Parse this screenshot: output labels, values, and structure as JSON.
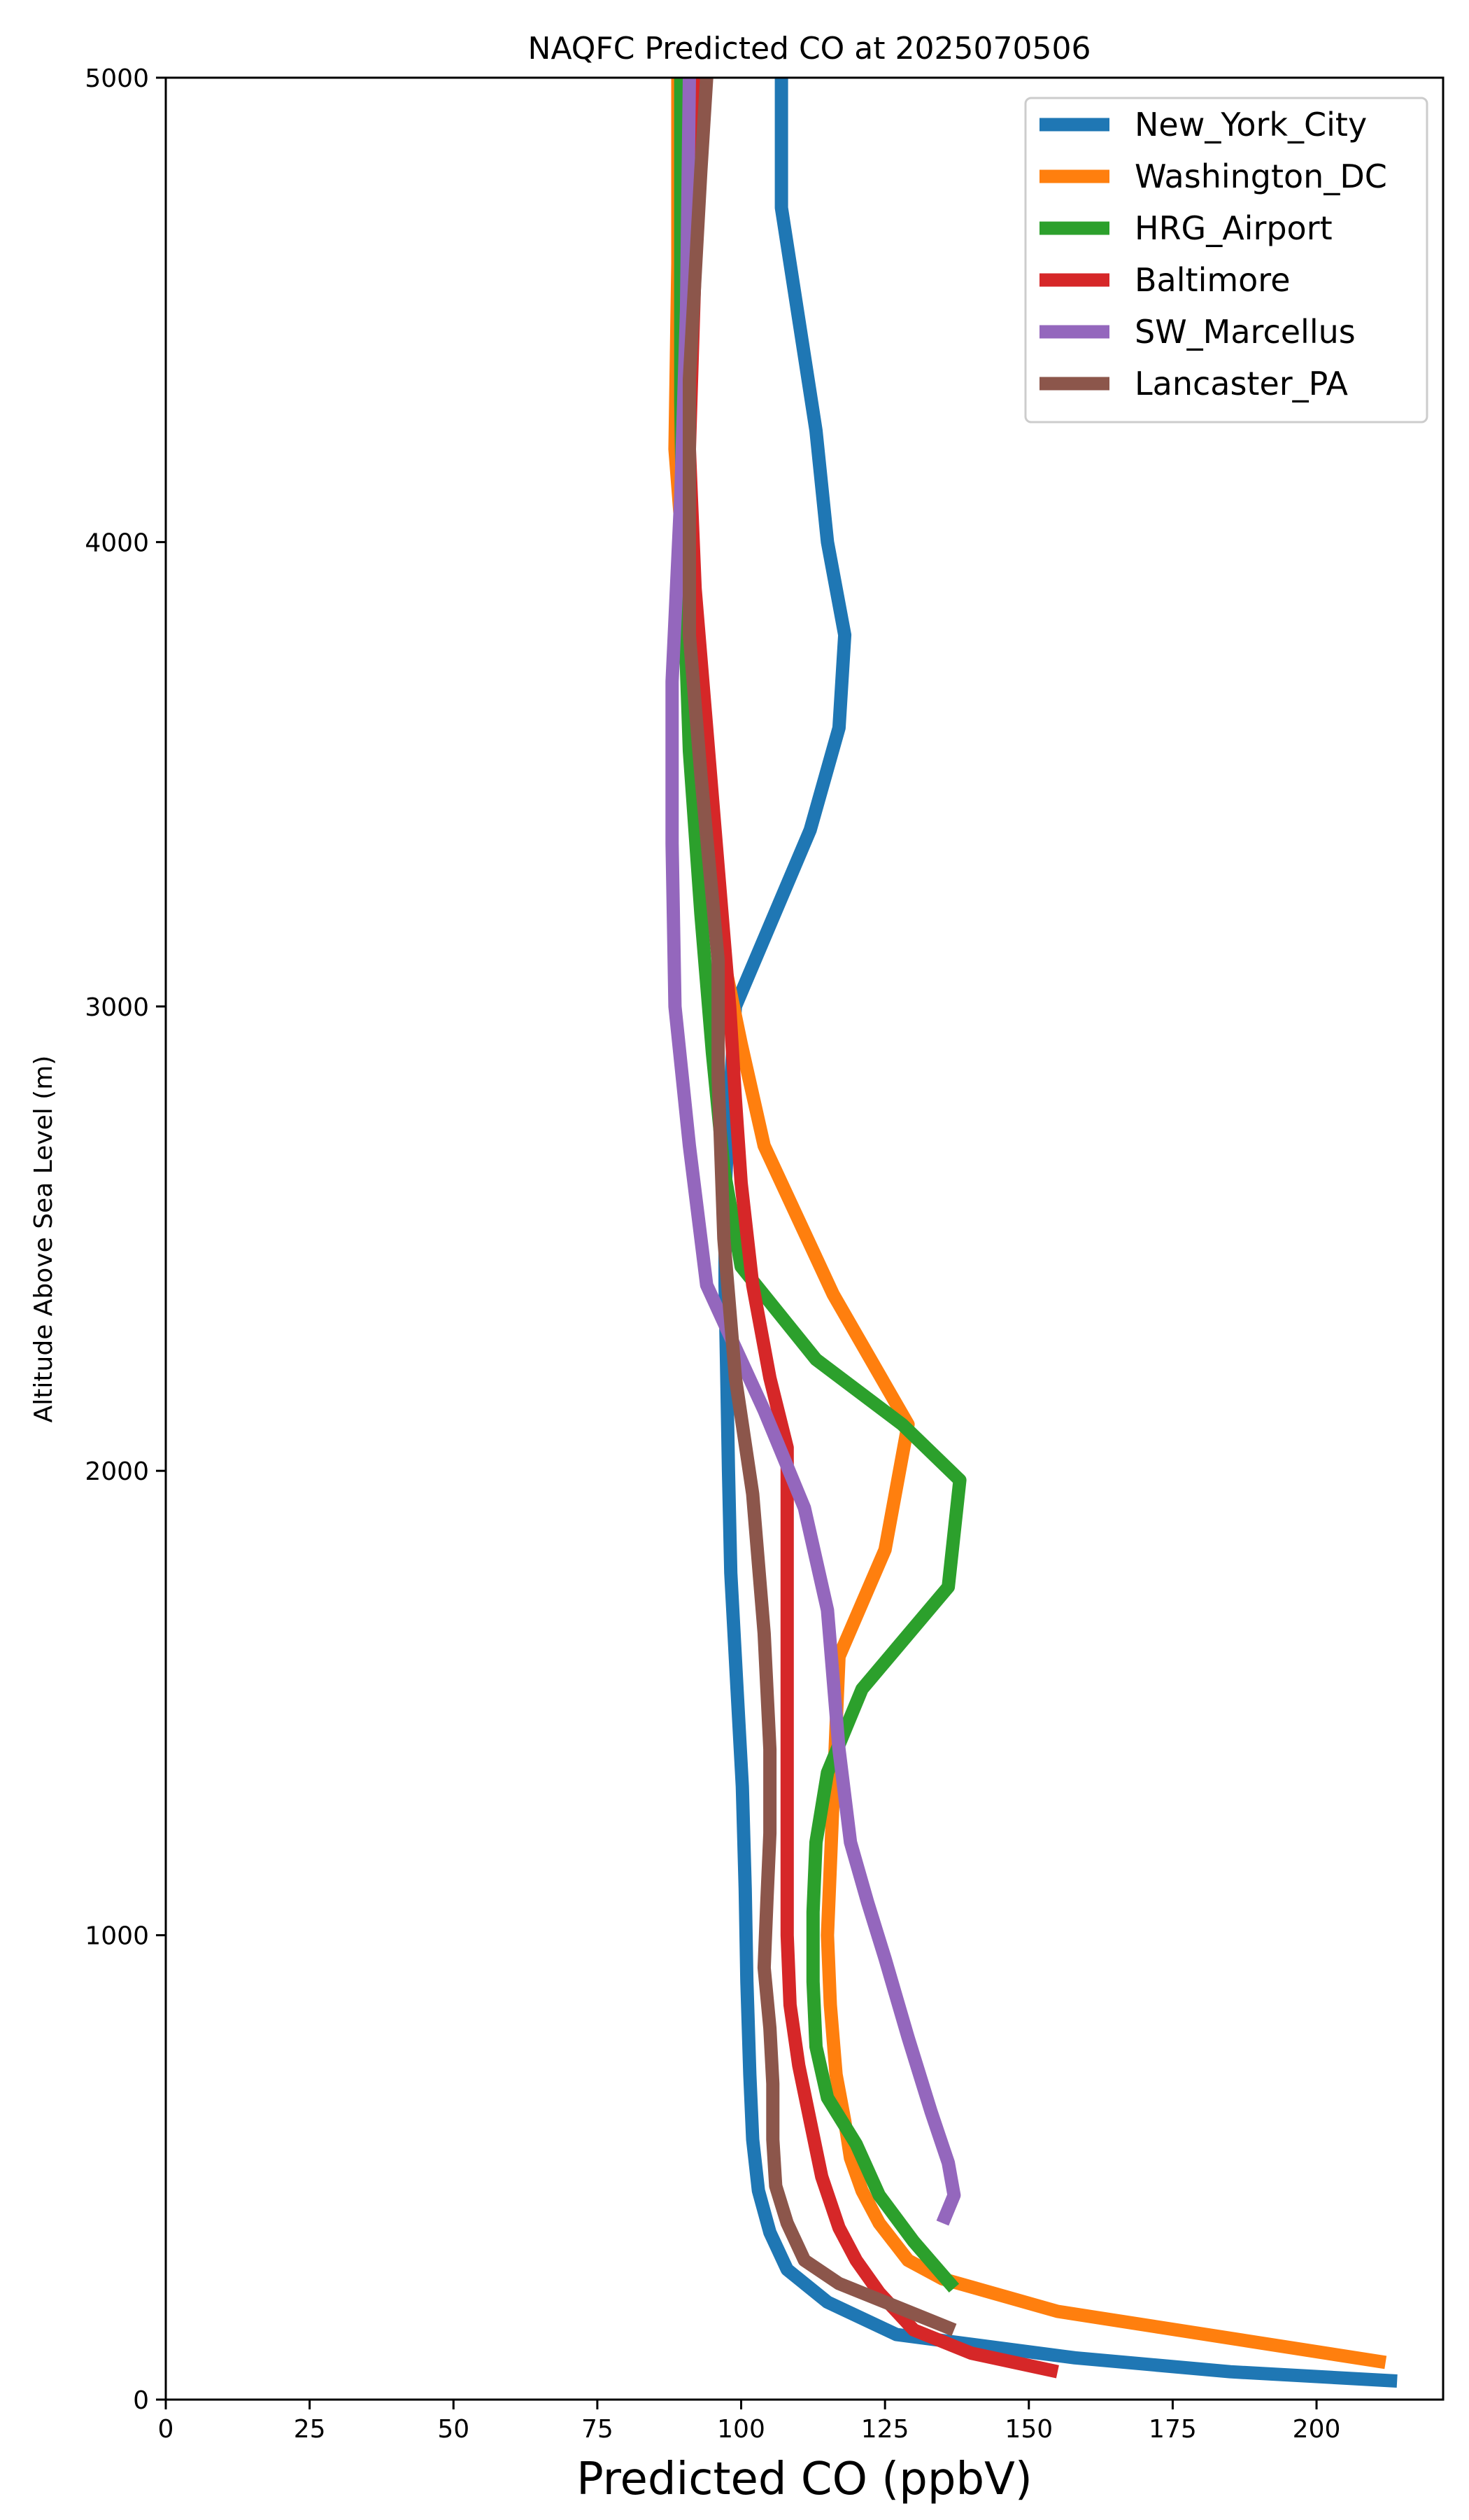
{
  "chart_data": {
    "type": "line",
    "title": "NAQFC Predicted CO at 2025070506",
    "xlabel": "Predicted CO (ppbV)",
    "ylabel": "Altitude Above Sea Level (m)",
    "xlim": [
      0,
      222
    ],
    "ylim": [
      0,
      5000
    ],
    "xticks": [
      0,
      25,
      50,
      75,
      100,
      125,
      150,
      175,
      200
    ],
    "yticks": [
      0,
      1000,
      2000,
      3000,
      4000,
      5000
    ],
    "grid": false,
    "legend_position": "top-right",
    "series": [
      {
        "name": "New_York_City",
        "color": "#1f77b4",
        "points": [
          [
            214,
            40
          ],
          [
            185,
            60
          ],
          [
            158,
            90
          ],
          [
            127,
            140
          ],
          [
            115,
            210
          ],
          [
            108,
            280
          ],
          [
            105,
            360
          ],
          [
            103,
            450
          ],
          [
            102,
            560
          ],
          [
            101.5,
            700
          ],
          [
            101,
            900
          ],
          [
            100.7,
            1100
          ],
          [
            100.2,
            1320
          ],
          [
            99.2,
            1550
          ],
          [
            98.2,
            1780
          ],
          [
            97.8,
            2000
          ],
          [
            97.5,
            2200
          ],
          [
            97.2,
            2400
          ],
          [
            97.2,
            2600
          ],
          [
            98,
            2800
          ],
          [
            99,
            3000
          ],
          [
            112,
            3380
          ],
          [
            117,
            3600
          ],
          [
            118,
            3800
          ],
          [
            115,
            4000
          ],
          [
            113,
            4240
          ],
          [
            107,
            4720
          ],
          [
            107,
            5000
          ]
        ]
      },
      {
        "name": "Washington_DC",
        "color": "#ff7f0e",
        "points": [
          [
            212,
            80
          ],
          [
            155,
            190
          ],
          [
            135,
            260
          ],
          [
            129,
            300
          ],
          [
            124,
            380
          ],
          [
            121,
            450
          ],
          [
            119,
            520
          ],
          [
            118,
            600
          ],
          [
            116.5,
            700
          ],
          [
            115.5,
            850
          ],
          [
            115,
            1000
          ],
          [
            115.5,
            1150
          ],
          [
            116,
            1300
          ],
          [
            116.5,
            1450
          ],
          [
            117,
            1600
          ],
          [
            125,
            1830
          ],
          [
            129,
            2100
          ],
          [
            116,
            2380
          ],
          [
            104,
            2700
          ],
          [
            100,
            2920
          ],
          [
            97,
            3100
          ],
          [
            94,
            3400
          ],
          [
            91,
            3800
          ],
          [
            88.5,
            4200
          ],
          [
            89,
            4600
          ],
          [
            89,
            5000
          ]
        ]
      },
      {
        "name": "HRG_Airport",
        "color": "#2ca02c",
        "points": [
          [
            137,
            240
          ],
          [
            130,
            340
          ],
          [
            124,
            440
          ],
          [
            120,
            550
          ],
          [
            115,
            650
          ],
          [
            113,
            760
          ],
          [
            112.5,
            900
          ],
          [
            112.5,
            1050
          ],
          [
            113,
            1200
          ],
          [
            115,
            1350
          ],
          [
            121,
            1530
          ],
          [
            136,
            1750
          ],
          [
            138,
            1980
          ],
          [
            128,
            2100
          ],
          [
            113,
            2240
          ],
          [
            100,
            2440
          ],
          [
            97,
            2650
          ],
          [
            95,
            2900
          ],
          [
            93,
            3200
          ],
          [
            91,
            3550
          ],
          [
            90,
            3900
          ],
          [
            89.5,
            4300
          ],
          [
            89.5,
            4700
          ],
          [
            89.5,
            5000
          ]
        ]
      },
      {
        "name": "Baltimore",
        "color": "#d62728",
        "points": [
          [
            155,
            60
          ],
          [
            140,
            100
          ],
          [
            130,
            150
          ],
          [
            124,
            230
          ],
          [
            120,
            300
          ],
          [
            117,
            370
          ],
          [
            114,
            480
          ],
          [
            112,
            600
          ],
          [
            110,
            720
          ],
          [
            108.5,
            850
          ],
          [
            108,
            1000
          ],
          [
            108,
            1200
          ],
          [
            108,
            1400
          ],
          [
            108,
            1600
          ],
          [
            108,
            1800
          ],
          [
            108,
            2050
          ],
          [
            105,
            2200
          ],
          [
            102,
            2400
          ],
          [
            100,
            2620
          ],
          [
            99,
            2800
          ],
          [
            98,
            3000
          ],
          [
            96,
            3300
          ],
          [
            94,
            3600
          ],
          [
            92,
            3900
          ],
          [
            91,
            4200
          ],
          [
            92,
            4600
          ],
          [
            93,
            5000
          ]
        ]
      },
      {
        "name": "SW_Marcellus",
        "color": "#9467bd",
        "points": [
          [
            135,
            380
          ],
          [
            137,
            440
          ],
          [
            136,
            510
          ],
          [
            133,
            620
          ],
          [
            129,
            780
          ],
          [
            125,
            950
          ],
          [
            122,
            1070
          ],
          [
            119,
            1200
          ],
          [
            117,
            1400
          ],
          [
            115,
            1700
          ],
          [
            111,
            1920
          ],
          [
            104,
            2130
          ],
          [
            94,
            2400
          ],
          [
            91,
            2700
          ],
          [
            88.5,
            3000
          ],
          [
            88,
            3350
          ],
          [
            88,
            3700
          ],
          [
            89.5,
            4100
          ],
          [
            90.5,
            4500
          ],
          [
            91,
            5000
          ]
        ]
      },
      {
        "name": "Lancaster_PA",
        "color": "#8c564b",
        "points": [
          [
            137,
            150
          ],
          [
            125,
            210
          ],
          [
            117,
            250
          ],
          [
            111,
            300
          ],
          [
            108,
            380
          ],
          [
            106,
            460
          ],
          [
            105.5,
            560
          ],
          [
            105.5,
            680
          ],
          [
            105,
            800
          ],
          [
            104,
            930
          ],
          [
            104.5,
            1080
          ],
          [
            105,
            1220
          ],
          [
            105,
            1400
          ],
          [
            104,
            1650
          ],
          [
            102,
            1950
          ],
          [
            99,
            2200
          ],
          [
            97,
            2500
          ],
          [
            96,
            2850
          ],
          [
            96,
            3100
          ],
          [
            93,
            3500
          ],
          [
            91,
            3800
          ],
          [
            91,
            4350
          ],
          [
            93,
            4800
          ],
          [
            94,
            5000
          ]
        ]
      }
    ]
  }
}
